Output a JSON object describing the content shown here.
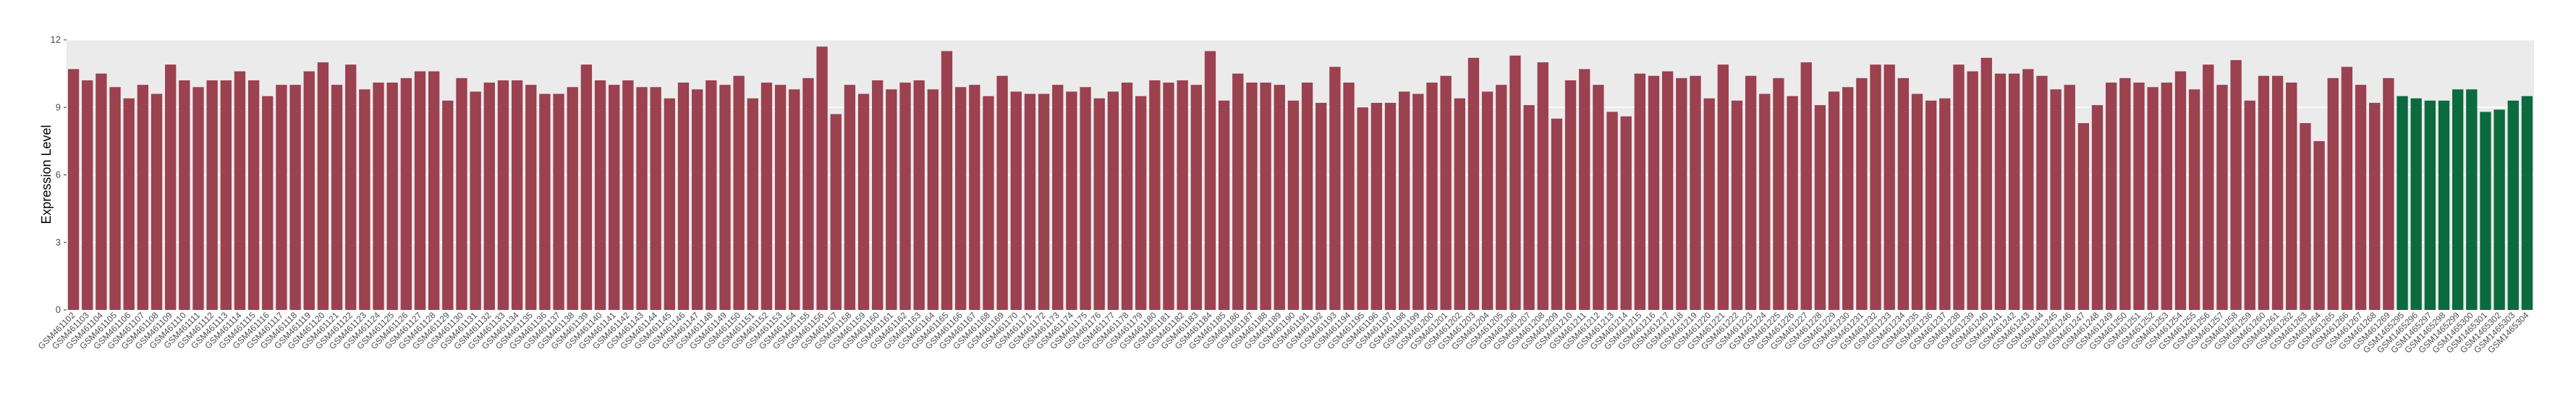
{
  "chart_data": {
    "type": "bar",
    "y_label": "Expression Level",
    "ylim": [
      0,
      12
    ],
    "yticks": [
      0,
      3,
      6,
      9,
      12
    ],
    "grid": true,
    "categories": [
      "GSM461102",
      "GSM461103",
      "GSM461104",
      "GSM461105",
      "GSM461106",
      "GSM461107",
      "GSM461108",
      "GSM461109",
      "GSM461110",
      "GSM461111",
      "GSM461112",
      "GSM461113",
      "GSM461114",
      "GSM461115",
      "GSM461116",
      "GSM461117",
      "GSM461118",
      "GSM461119",
      "GSM461120",
      "GSM461121",
      "GSM461122",
      "GSM461123",
      "GSM461124",
      "GSM461125",
      "GSM461126",
      "GSM461127",
      "GSM461128",
      "GSM461129",
      "GSM461130",
      "GSM461131",
      "GSM461132",
      "GSM461133",
      "GSM461134",
      "GSM461135",
      "GSM461136",
      "GSM461137",
      "GSM461138",
      "GSM461139",
      "GSM461140",
      "GSM461141",
      "GSM461142",
      "GSM461143",
      "GSM461144",
      "GSM461145",
      "GSM461146",
      "GSM461147",
      "GSM461148",
      "GSM461149",
      "GSM461150",
      "GSM461151",
      "GSM461152",
      "GSM461153",
      "GSM461154",
      "GSM461155",
      "GSM461156",
      "GSM461157",
      "GSM461158",
      "GSM461159",
      "GSM461160",
      "GSM461161",
      "GSM461162",
      "GSM461163",
      "GSM461164",
      "GSM461165",
      "GSM461166",
      "GSM461167",
      "GSM461168",
      "GSM461169",
      "GSM461170",
      "GSM461171",
      "GSM461172",
      "GSM461173",
      "GSM461174",
      "GSM461175",
      "GSM461176",
      "GSM461177",
      "GSM461178",
      "GSM461179",
      "GSM461180",
      "GSM461181",
      "GSM461182",
      "GSM461183",
      "GSM461184",
      "GSM461185",
      "GSM461186",
      "GSM461187",
      "GSM461188",
      "GSM461189",
      "GSM461190",
      "GSM461191",
      "GSM461192",
      "GSM461193",
      "GSM461194",
      "GSM461195",
      "GSM461196",
      "GSM461197",
      "GSM461198",
      "GSM461199",
      "GSM461200",
      "GSM461201",
      "GSM461202",
      "GSM461203",
      "GSM461204",
      "GSM461205",
      "GSM461206",
      "GSM461207",
      "GSM461208",
      "GSM461209",
      "GSM461210",
      "GSM461211",
      "GSM461212",
      "GSM461213",
      "GSM461214",
      "GSM461215",
      "GSM461216",
      "GSM461217",
      "GSM461218",
      "GSM461219",
      "GSM461220",
      "GSM461221",
      "GSM461222",
      "GSM461223",
      "GSM461224",
      "GSM461225",
      "GSM461226",
      "GSM461227",
      "GSM461228",
      "GSM461229",
      "GSM461230",
      "GSM461231",
      "GSM461232",
      "GSM461233",
      "GSM461234",
      "GSM461235",
      "GSM461236",
      "GSM461237",
      "GSM461238",
      "GSM461239",
      "GSM461240",
      "GSM461241",
      "GSM461242",
      "GSM461243",
      "GSM461244",
      "GSM461245",
      "GSM461246",
      "GSM461247",
      "GSM461248",
      "GSM461249",
      "GSM461250",
      "GSM461251",
      "GSM461252",
      "GSM461253",
      "GSM461254",
      "GSM461255",
      "GSM461256",
      "GSM461257",
      "GSM461258",
      "GSM461259",
      "GSM461260",
      "GSM461261",
      "GSM461262",
      "GSM461263",
      "GSM461264",
      "GSM461265",
      "GSM461266",
      "GSM461267",
      "GSM461268",
      "GSM461269",
      "GSM1465295",
      "GSM1465296",
      "GSM1465297",
      "GSM1465298",
      "GSM1465299",
      "GSM1465300",
      "GSM1465301",
      "GSM1465302",
      "GSM1465303",
      "GSM1465304"
    ],
    "values": [
      10.7,
      10.2,
      10.5,
      9.9,
      9.4,
      10.0,
      9.6,
      10.9,
      10.2,
      9.9,
      10.2,
      10.2,
      10.6,
      10.2,
      9.5,
      10.0,
      10.0,
      10.6,
      11.0,
      10.0,
      10.9,
      9.8,
      10.1,
      10.1,
      10.3,
      10.6,
      10.6,
      9.3,
      10.3,
      9.7,
      10.1,
      10.2,
      10.2,
      10.0,
      9.6,
      9.6,
      9.9,
      10.9,
      10.2,
      10.0,
      10.2,
      9.9,
      9.9,
      9.4,
      10.1,
      9.8,
      10.2,
      10.0,
      10.4,
      9.4,
      10.1,
      10.0,
      9.8,
      10.3,
      11.7,
      8.7,
      10.0,
      9.6,
      10.2,
      9.8,
      10.1,
      10.2,
      9.8,
      11.5,
      9.9,
      10.0,
      9.5,
      10.4,
      9.7,
      9.6,
      9.6,
      10.0,
      9.7,
      9.9,
      9.4,
      9.7,
      10.1,
      9.5,
      10.2,
      10.1,
      10.2,
      10.0,
      11.5,
      9.3,
      10.5,
      10.1,
      10.1,
      10.0,
      9.3,
      10.1,
      9.2,
      10.8,
      10.1,
      9.0,
      9.2,
      9.2,
      9.7,
      9.6,
      10.1,
      10.4,
      9.4,
      11.2,
      9.7,
      10.0,
      11.3,
      9.1,
      11.0,
      8.5,
      10.2,
      10.7,
      10.0,
      8.8,
      8.6,
      10.5,
      10.4,
      10.6,
      10.3,
      10.4,
      9.4,
      10.9,
      9.3,
      10.4,
      9.6,
      10.3,
      9.5,
      11.0,
      9.1,
      9.7,
      9.9,
      10.3,
      10.9,
      10.9,
      10.3,
      9.6,
      9.3,
      9.4,
      10.9,
      10.6,
      11.2,
      10.5,
      10.5,
      10.7,
      10.4,
      9.8,
      10.0,
      8.3,
      9.1,
      10.1,
      10.3,
      10.1,
      9.9,
      10.1,
      10.6,
      9.8,
      10.9,
      10.0,
      11.1,
      9.3,
      10.4,
      10.4,
      10.1,
      8.3,
      7.5,
      10.3,
      10.8,
      10.0,
      9.2,
      10.3,
      9.5,
      9.4,
      9.3,
      9.3,
      9.8,
      9.8,
      8.8,
      8.9,
      9.3,
      9.5
    ],
    "colors": [
      "#9b4150",
      "#9b4150",
      "#9b4150",
      "#9b4150",
      "#9b4150",
      "#9b4150",
      "#9b4150",
      "#9b4150",
      "#9b4150",
      "#9b4150",
      "#9b4150",
      "#9b4150",
      "#9b4150",
      "#9b4150",
      "#9b4150",
      "#9b4150",
      "#9b4150",
      "#9b4150",
      "#9b4150",
      "#9b4150",
      "#9b4150",
      "#9b4150",
      "#9b4150",
      "#9b4150",
      "#9b4150",
      "#9b4150",
      "#9b4150",
      "#9b4150",
      "#9b4150",
      "#9b4150",
      "#9b4150",
      "#9b4150",
      "#9b4150",
      "#9b4150",
      "#9b4150",
      "#9b4150",
      "#9b4150",
      "#9b4150",
      "#9b4150",
      "#9b4150",
      "#9b4150",
      "#9b4150",
      "#9b4150",
      "#9b4150",
      "#9b4150",
      "#9b4150",
      "#9b4150",
      "#9b4150",
      "#9b4150",
      "#9b4150",
      "#9b4150",
      "#9b4150",
      "#9b4150",
      "#9b4150",
      "#9b4150",
      "#9b4150",
      "#9b4150",
      "#9b4150",
      "#9b4150",
      "#9b4150",
      "#9b4150",
      "#9b4150",
      "#9b4150",
      "#9b4150",
      "#9b4150",
      "#9b4150",
      "#9b4150",
      "#9b4150",
      "#9b4150",
      "#9b4150",
      "#9b4150",
      "#9b4150",
      "#9b4150",
      "#9b4150",
      "#9b4150",
      "#9b4150",
      "#9b4150",
      "#9b4150",
      "#9b4150",
      "#9b4150",
      "#9b4150",
      "#9b4150",
      "#9b4150",
      "#9b4150",
      "#9b4150",
      "#9b4150",
      "#9b4150",
      "#9b4150",
      "#9b4150",
      "#9b4150",
      "#9b4150",
      "#9b4150",
      "#9b4150",
      "#9b4150",
      "#9b4150",
      "#9b4150",
      "#9b4150",
      "#9b4150",
      "#9b4150",
      "#9b4150",
      "#9b4150",
      "#9b4150",
      "#9b4150",
      "#9b4150",
      "#9b4150",
      "#9b4150",
      "#9b4150",
      "#9b4150",
      "#9b4150",
      "#9b4150",
      "#9b4150",
      "#9b4150",
      "#9b4150",
      "#9b4150",
      "#9b4150",
      "#9b4150",
      "#9b4150",
      "#9b4150",
      "#9b4150",
      "#9b4150",
      "#9b4150",
      "#9b4150",
      "#9b4150",
      "#9b4150",
      "#9b4150",
      "#9b4150",
      "#9b4150",
      "#9b4150",
      "#9b4150",
      "#9b4150",
      "#9b4150",
      "#9b4150",
      "#9b4150",
      "#9b4150",
      "#9b4150",
      "#9b4150",
      "#9b4150",
      "#9b4150",
      "#9b4150",
      "#9b4150",
      "#9b4150",
      "#9b4150",
      "#9b4150",
      "#9b4150",
      "#9b4150",
      "#9b4150",
      "#9b4150",
      "#9b4150",
      "#9b4150",
      "#9b4150",
      "#9b4150",
      "#9b4150",
      "#9b4150",
      "#9b4150",
      "#9b4150",
      "#9b4150",
      "#9b4150",
      "#9b4150",
      "#9b4150",
      "#9b4150",
      "#9b4150",
      "#9b4150",
      "#9b4150",
      "#9b4150",
      "#9b4150",
      "#9b4150",
      "#9b4150",
      "#9b4150",
      "#0b6b3f",
      "#0b6b3f",
      "#0b6b3f",
      "#0b6b3f",
      "#0b6b3f",
      "#0b6b3f",
      "#0b6b3f",
      "#0b6b3f",
      "#0b6b3f",
      "#0b6b3f"
    ]
  }
}
